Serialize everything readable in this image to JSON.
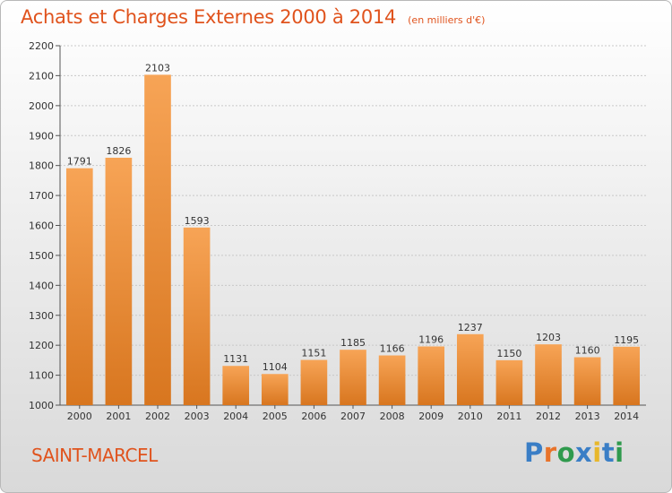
{
  "title": "Achats et Charges Externes 2000 à 2014",
  "subtitle": "(en milliers d'€)",
  "place": "SAINT-MARCEL",
  "logo": {
    "text": "Proxiti",
    "colors": [
      "#3a7ec6",
      "#e8732a",
      "#2f9a4d",
      "#3a7ec6",
      "#e8b72a",
      "#3a7ec6",
      "#2f9a4d"
    ]
  },
  "colors": {
    "bar_top": "#f7a456",
    "bar_bottom": "#d8761f",
    "title": "#e0531d"
  },
  "chart_data": {
    "type": "bar",
    "categories": [
      "2000",
      "2001",
      "2002",
      "2003",
      "2004",
      "2005",
      "2006",
      "2007",
      "2008",
      "2009",
      "2010",
      "2011",
      "2012",
      "2013",
      "2014"
    ],
    "values": [
      1791,
      1826,
      2103,
      1593,
      1131,
      1104,
      1151,
      1185,
      1166,
      1196,
      1237,
      1150,
      1203,
      1160,
      1195
    ],
    "title": "Achats et Charges Externes 2000 à 2014",
    "subtitle": "(en milliers d'€)",
    "xlabel": "",
    "ylabel": "",
    "ylim": [
      1000,
      2200
    ],
    "yticks": [
      1000,
      1100,
      1200,
      1300,
      1400,
      1500,
      1600,
      1700,
      1800,
      1900,
      2000,
      2100,
      2200
    ],
    "grid": true,
    "legend": "none"
  }
}
